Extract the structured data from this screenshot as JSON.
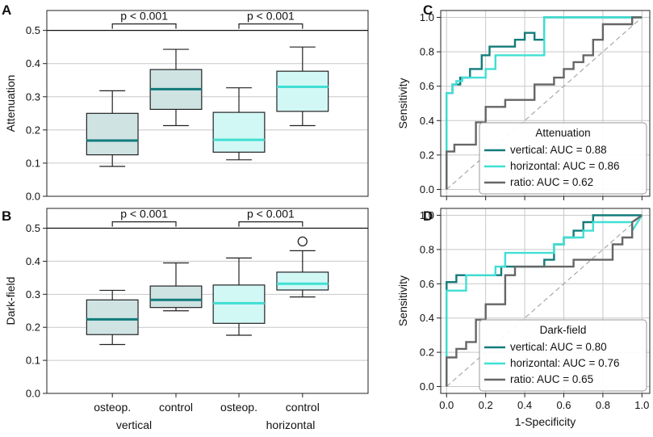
{
  "colors": {
    "vertical": "#137b7b",
    "horizontal": "#40dfd3",
    "ratio": "#666666",
    "vertical_fill": "#cfe3e3",
    "horizontal_fill": "#d2f8f6"
  },
  "chart_data": [
    {
      "panel": "A",
      "type": "box",
      "ylabel": "Attenuation",
      "ylim": [
        0,
        0.56
      ],
      "yticks": [
        "0.0",
        "0.1",
        "0.2",
        "0.3",
        "0.4",
        "0.5"
      ],
      "categories": [
        "osteop.",
        "control",
        "osteop.",
        "control"
      ],
      "groups": [
        "vertical",
        "horizontal"
      ],
      "boxes": [
        {
          "series": "vertical",
          "min": 0.09,
          "q1": 0.125,
          "median": 0.168,
          "q3": 0.25,
          "max": 0.318
        },
        {
          "series": "vertical",
          "min": 0.213,
          "q1": 0.262,
          "median": 0.323,
          "q3": 0.382,
          "max": 0.443
        },
        {
          "series": "horizontal",
          "min": 0.11,
          "q1": 0.133,
          "median": 0.17,
          "q3": 0.253,
          "max": 0.327
        },
        {
          "series": "horizontal",
          "min": 0.213,
          "q1": 0.256,
          "median": 0.33,
          "q3": 0.377,
          "max": 0.45
        }
      ],
      "significance": [
        "p < 0.001",
        "p < 0.001"
      ]
    },
    {
      "panel": "B",
      "type": "box",
      "ylabel": "Dark-field",
      "ylim": [
        0,
        0.56
      ],
      "yticks": [
        "0.0",
        "0.1",
        "0.2",
        "0.3",
        "0.4",
        "0.5"
      ],
      "categories": [
        "osteop.",
        "control",
        "osteop.",
        "control"
      ],
      "groups": [
        "vertical",
        "horizontal"
      ],
      "boxes": [
        {
          "series": "vertical",
          "min": 0.148,
          "q1": 0.178,
          "median": 0.224,
          "q3": 0.283,
          "max": 0.312
        },
        {
          "series": "vertical",
          "min": 0.25,
          "q1": 0.26,
          "median": 0.283,
          "q3": 0.325,
          "max": 0.395
        },
        {
          "series": "horizontal",
          "min": 0.176,
          "q1": 0.212,
          "median": 0.273,
          "q3": 0.328,
          "max": 0.41
        },
        {
          "series": "horizontal",
          "min": 0.292,
          "q1": 0.313,
          "median": 0.332,
          "q3": 0.367,
          "max": 0.432,
          "outliers": [
            0.46
          ]
        }
      ],
      "significance": [
        "p < 0.001",
        "p < 0.001"
      ]
    },
    {
      "panel": "C",
      "type": "line",
      "legend_title": "Attenuation",
      "ylabel": "Sensitivity",
      "xlim": [
        -0.03,
        1.04
      ],
      "ylim": [
        -0.04,
        1.04
      ],
      "yticks": [
        "0.0",
        "0.2",
        "0.4",
        "0.6",
        "0.8",
        "1.0"
      ],
      "series": [
        {
          "name": "vertical: AUC = 0.88",
          "color_key": "vertical",
          "x": [
            0,
            0,
            0.03,
            0.03,
            0.07,
            0.07,
            0.12,
            0.12,
            0.18,
            0.18,
            0.22,
            0.22,
            0.35,
            0.35,
            0.4,
            0.4,
            0.45,
            0.45,
            0.5,
            0.5,
            0.55,
            0.55,
            0.85,
            0.85,
            1
          ],
          "y": [
            0,
            0.56,
            0.56,
            0.61,
            0.61,
            0.65,
            0.65,
            0.7,
            0.7,
            0.78,
            0.78,
            0.83,
            0.83,
            0.87,
            0.87,
            0.91,
            0.91,
            0.87,
            0.87,
            1,
            1,
            1,
            1,
            1,
            1
          ]
        },
        {
          "name": "horizontal: AUC = 0.86",
          "color_key": "horizontal",
          "x": [
            0,
            0,
            0.03,
            0.03,
            0.05,
            0.05,
            0.08,
            0.08,
            0.2,
            0.2,
            0.25,
            0.25,
            0.45,
            0.45,
            0.5,
            0.5,
            1
          ],
          "y": [
            0,
            0.56,
            0.56,
            0.61,
            0.61,
            0.63,
            0.63,
            0.65,
            0.65,
            0.7,
            0.7,
            0.78,
            0.78,
            0.78,
            0.78,
            1,
            1
          ]
        },
        {
          "name": "ratio: AUC = 0.62",
          "color_key": "ratio",
          "x": [
            0,
            0,
            0.04,
            0.04,
            0.15,
            0.15,
            0.2,
            0.2,
            0.3,
            0.3,
            0.45,
            0.45,
            0.55,
            0.55,
            0.6,
            0.6,
            0.65,
            0.65,
            0.7,
            0.7,
            0.75,
            0.75,
            0.8,
            0.8,
            0.95,
            0.95,
            1
          ],
          "y": [
            0,
            0.22,
            0.22,
            0.26,
            0.26,
            0.39,
            0.39,
            0.48,
            0.48,
            0.52,
            0.52,
            0.61,
            0.61,
            0.65,
            0.65,
            0.7,
            0.7,
            0.74,
            0.74,
            0.78,
            0.78,
            0.87,
            0.87,
            0.96,
            0.96,
            1,
            1
          ]
        }
      ]
    },
    {
      "panel": "D",
      "type": "line",
      "legend_title": "Dark-field",
      "ylabel": "Sensitivity",
      "xlabel": "1-Specificity",
      "xlim": [
        -0.03,
        1.04
      ],
      "ylim": [
        -0.04,
        1.04
      ],
      "xticks": [
        "0.0",
        "0.2",
        "0.4",
        "0.6",
        "0.8",
        "1.0"
      ],
      "yticks": [
        "0.0",
        "0.2",
        "0.4",
        "0.6",
        "0.8",
        "1.0"
      ],
      "series": [
        {
          "name": "vertical: AUC = 0.80",
          "color_key": "vertical",
          "x": [
            0,
            0,
            0.05,
            0.05,
            0.15,
            0.15,
            0.28,
            0.28,
            0.5,
            0.5,
            0.55,
            0.55,
            0.6,
            0.6,
            0.65,
            0.65,
            0.7,
            0.7,
            0.75,
            0.75,
            0.95,
            0.95,
            1
          ],
          "y": [
            0,
            0.61,
            0.61,
            0.65,
            0.65,
            0.65,
            0.65,
            0.7,
            0.7,
            0.74,
            0.74,
            0.83,
            0.83,
            0.87,
            0.87,
            0.91,
            0.91,
            0.96,
            0.96,
            1,
            1,
            1,
            1
          ]
        },
        {
          "name": "horizontal: AUC = 0.76",
          "color_key": "horizontal",
          "x": [
            0,
            0,
            0.1,
            0.1,
            0.25,
            0.25,
            0.3,
            0.3,
            0.5,
            0.5,
            0.55,
            0.55,
            0.6,
            0.6,
            0.7,
            0.7,
            0.75,
            0.75,
            0.95,
            0.95,
            1
          ],
          "y": [
            0,
            0.56,
            0.56,
            0.65,
            0.65,
            0.7,
            0.7,
            0.78,
            0.78,
            0.78,
            0.78,
            0.83,
            0.83,
            0.87,
            0.87,
            0.91,
            0.91,
            0.96,
            0.96,
            0.91,
            1
          ]
        },
        {
          "name": "ratio: AUC = 0.65",
          "color_key": "ratio",
          "x": [
            0,
            0,
            0.05,
            0.05,
            0.1,
            0.1,
            0.15,
            0.15,
            0.2,
            0.2,
            0.3,
            0.3,
            0.35,
            0.35,
            0.4,
            0.4,
            0.55,
            0.55,
            0.65,
            0.65,
            0.75,
            0.75,
            0.85,
            0.85,
            0.9,
            0.9,
            0.95,
            0.95,
            1
          ],
          "y": [
            0,
            0.17,
            0.17,
            0.22,
            0.22,
            0.26,
            0.26,
            0.39,
            0.39,
            0.48,
            0.48,
            0.65,
            0.65,
            0.7,
            0.7,
            0.7,
            0.7,
            0.7,
            0.7,
            0.74,
            0.74,
            0.74,
            0.74,
            0.83,
            0.83,
            0.87,
            0.87,
            0.96,
            1
          ]
        }
      ]
    }
  ],
  "labels": {
    "panel_a": "A",
    "panel_b": "B",
    "panel_c": "C",
    "panel_d": "D",
    "group_vertical": "vertical",
    "group_horizontal": "horizontal"
  }
}
